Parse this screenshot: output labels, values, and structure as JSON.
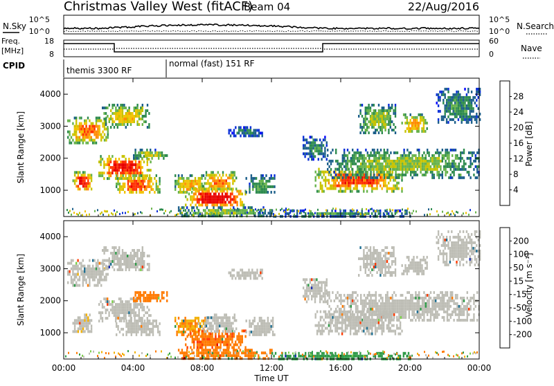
{
  "header": {
    "title": "Christmas Valley West (fitACF)",
    "beam": "Beam 04",
    "date": "22/Aug/2016"
  },
  "noise_panel": {
    "left_label": "N.Sky",
    "right_label": "N.Search",
    "left_ticks": [
      "10^5",
      "10^0"
    ],
    "right_ticks": [
      "10^5",
      "10^0"
    ]
  },
  "freq_panel": {
    "left_label_line1": "Freq.",
    "left_label_line2": "[MHz]",
    "left_ticks": [
      "18",
      "8"
    ],
    "right_label": "Nave",
    "right_ticks": [
      "60",
      "0"
    ]
  },
  "cpid_panel": {
    "label": "CPID",
    "modes": [
      "themis 3300 RF",
      "normal (fast) 151 RF"
    ]
  },
  "chart_data": {
    "type": "heatmap",
    "xlabel": "Time UT",
    "x_ticks": [
      "00:00",
      "04:00",
      "08:00",
      "12:00",
      "16:00",
      "20:00",
      "00:00"
    ],
    "xlim_hours": [
      0,
      24
    ],
    "panels": [
      {
        "ylabel": "Slant Range [km]",
        "y_ticks": [
          1000,
          2000,
          3000,
          4000
        ],
        "ylim": [
          180,
          4500
        ],
        "colorbar_label": "Power [dB]",
        "colorbar_ticks": [
          "28",
          "24",
          "20",
          "16",
          "12",
          "8",
          "4"
        ],
        "colorbar_colors": [
          "#e80000",
          "#ff3000",
          "#ff8a00",
          "#f2c200",
          "#c7c300",
          "#67b34b",
          "#2e8b4e",
          "#1c5f8a",
          "#0a2fd8",
          "#0000ff"
        ]
      },
      {
        "ylabel": "Slant Range [km]",
        "y_ticks": [
          1000,
          2000,
          3000,
          4000
        ],
        "ylim": [
          180,
          4500
        ],
        "colorbar_label": "Velocity [m s⁻¹]",
        "colorbar_ticks": [
          "200",
          "100",
          "50",
          "15",
          "-15",
          "-50",
          "-100",
          "-200"
        ],
        "colorbar_colors": [
          "#1c2fb0",
          "#1f6f92",
          "#2f9a48",
          "#7cd04a",
          "#bdbdb5",
          "#f2b000",
          "#ff7a00",
          "#ff3a00",
          "#e00000"
        ]
      }
    ],
    "echo_regions": [
      {
        "t0": 0.2,
        "t1": 2.6,
        "r0": 2500,
        "r1": 3300,
        "power": 22,
        "vel": 0
      },
      {
        "t0": 2.2,
        "t1": 4.9,
        "r0": 3000,
        "r1": 3700,
        "power": 18,
        "vel": 5
      },
      {
        "t0": 0.5,
        "t1": 1.6,
        "r0": 1000,
        "r1": 1600,
        "power": 26,
        "vel": -10
      },
      {
        "t0": 2.0,
        "t1": 5.0,
        "r0": 1400,
        "r1": 2100,
        "power": 26,
        "vel": 0
      },
      {
        "t0": 3.0,
        "t1": 5.5,
        "r0": 900,
        "r1": 1500,
        "power": 24,
        "vel": 0
      },
      {
        "t0": 4.0,
        "t1": 6.0,
        "r0": 2000,
        "r1": 2300,
        "power": 16,
        "vel": -40
      },
      {
        "t0": 6.4,
        "t1": 8.2,
        "r0": 900,
        "r1": 1500,
        "power": 20,
        "vel": -30
      },
      {
        "t0": 7.0,
        "t1": 10.5,
        "r0": 500,
        "r1": 1100,
        "power": 28,
        "vel": -70
      },
      {
        "t0": 8.0,
        "t1": 10.0,
        "r0": 1000,
        "r1": 1600,
        "power": 22,
        "vel": 0
      },
      {
        "t0": 10.5,
        "t1": 12.2,
        "r0": 900,
        "r1": 1500,
        "power": 12,
        "vel": 0
      },
      {
        "t0": 9.5,
        "t1": 11.5,
        "r0": 2700,
        "r1": 3000,
        "power": 8,
        "vel": 0
      },
      {
        "t0": 13.8,
        "t1": 15.2,
        "r0": 2000,
        "r1": 2700,
        "power": 10,
        "vel": 0
      },
      {
        "t0": 14.5,
        "t1": 19.5,
        "r0": 1000,
        "r1": 1700,
        "power": 24,
        "vel": 0
      },
      {
        "t0": 15.2,
        "t1": 24.0,
        "r0": 1400,
        "r1": 2300,
        "power": 14,
        "vel": 0
      },
      {
        "t0": 17.0,
        "t1": 19.2,
        "r0": 2800,
        "r1": 3700,
        "power": 14,
        "vel": 0
      },
      {
        "t0": 19.5,
        "t1": 21.0,
        "r0": 2800,
        "r1": 3400,
        "power": 20,
        "vel": 0
      },
      {
        "t0": 21.5,
        "t1": 24.0,
        "r0": 3100,
        "r1": 4200,
        "power": 10,
        "vel": 5
      },
      {
        "t0": 6.5,
        "t1": 12.0,
        "r0": 200,
        "r1": 500,
        "power": 14,
        "vel": -40
      },
      {
        "t0": 12.0,
        "t1": 20.0,
        "r0": 200,
        "r1": 400,
        "power": 10,
        "vel": 40
      }
    ]
  }
}
